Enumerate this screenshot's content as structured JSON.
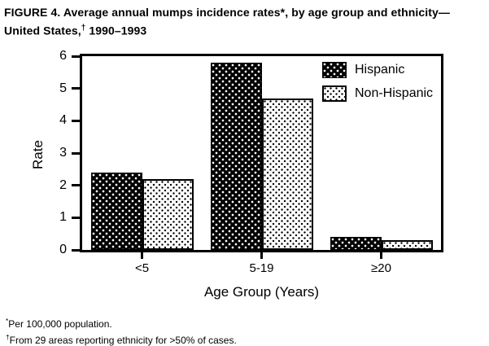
{
  "title": {
    "line1": "FIGURE 4. Average annual mumps incidence rates*, by age group and ethnicity—",
    "line2_pre": "United States,",
    "line2_sup": "†",
    "line2_post": " 1990–1993"
  },
  "chart_data": {
    "type": "bar",
    "categories": [
      "<5",
      "5-19",
      "≥20"
    ],
    "series": [
      {
        "name": "Hispanic",
        "values": [
          2.4,
          5.8,
          0.4
        ],
        "pattern": "white-dots-on-black"
      },
      {
        "name": "Non-Hispanic",
        "values": [
          2.2,
          4.7,
          0.3
        ],
        "pattern": "black-dots-on-white"
      }
    ],
    "xlabel": "Age Group (Years)",
    "ylabel": "Rate",
    "ylim": [
      0,
      6
    ],
    "yticks": [
      0,
      1,
      2,
      3,
      4,
      5,
      6
    ],
    "grid": false,
    "legend_position": "top-right-inside",
    "colors": {
      "foreground": "#000000",
      "background": "#ffffff"
    }
  },
  "footnotes": [
    {
      "marker": "*",
      "text": "Per 100,000 population."
    },
    {
      "marker": "†",
      "text": "From 29 areas reporting ethnicity for >50% of cases."
    }
  ]
}
